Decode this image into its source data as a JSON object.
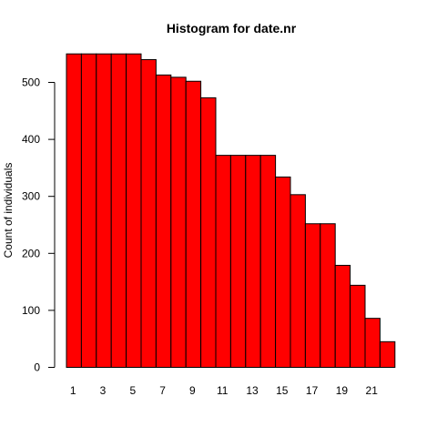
{
  "chart_data": {
    "type": "bar",
    "title": "Histogram for date.nr",
    "xlabel": "",
    "ylabel": "Count of individuals",
    "bar_color": "#ff0000",
    "bar_border_color": "#000000",
    "categories": [
      "1",
      "2",
      "3",
      "4",
      "5",
      "6",
      "7",
      "8",
      "9",
      "10",
      "11",
      "12",
      "13",
      "14",
      "15",
      "16",
      "17",
      "18",
      "19",
      "20",
      "21",
      "22"
    ],
    "values": [
      550,
      550,
      550,
      550,
      550,
      540,
      513,
      509,
      502,
      473,
      372,
      372,
      372,
      372,
      334,
      303,
      252,
      252,
      179,
      144,
      86,
      45
    ],
    "x_tick_labels": [
      "1",
      "3",
      "5",
      "7",
      "9",
      "11",
      "13",
      "15",
      "17",
      "19",
      "21"
    ],
    "y_tick_labels": [
      "0",
      "100",
      "200",
      "300",
      "400",
      "500"
    ],
    "ylim": [
      0,
      550
    ],
    "grid": false
  }
}
